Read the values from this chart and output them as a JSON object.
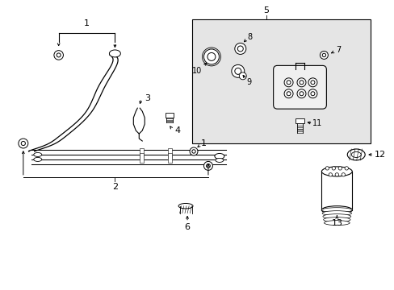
{
  "bg_color": "#ffffff",
  "box_bg": "#e8e8e8",
  "lc": "#000000",
  "figsize": [
    4.89,
    3.6
  ],
  "dpi": 100,
  "xlim": [
    0,
    4.89
  ],
  "ylim": [
    0,
    3.6
  ]
}
